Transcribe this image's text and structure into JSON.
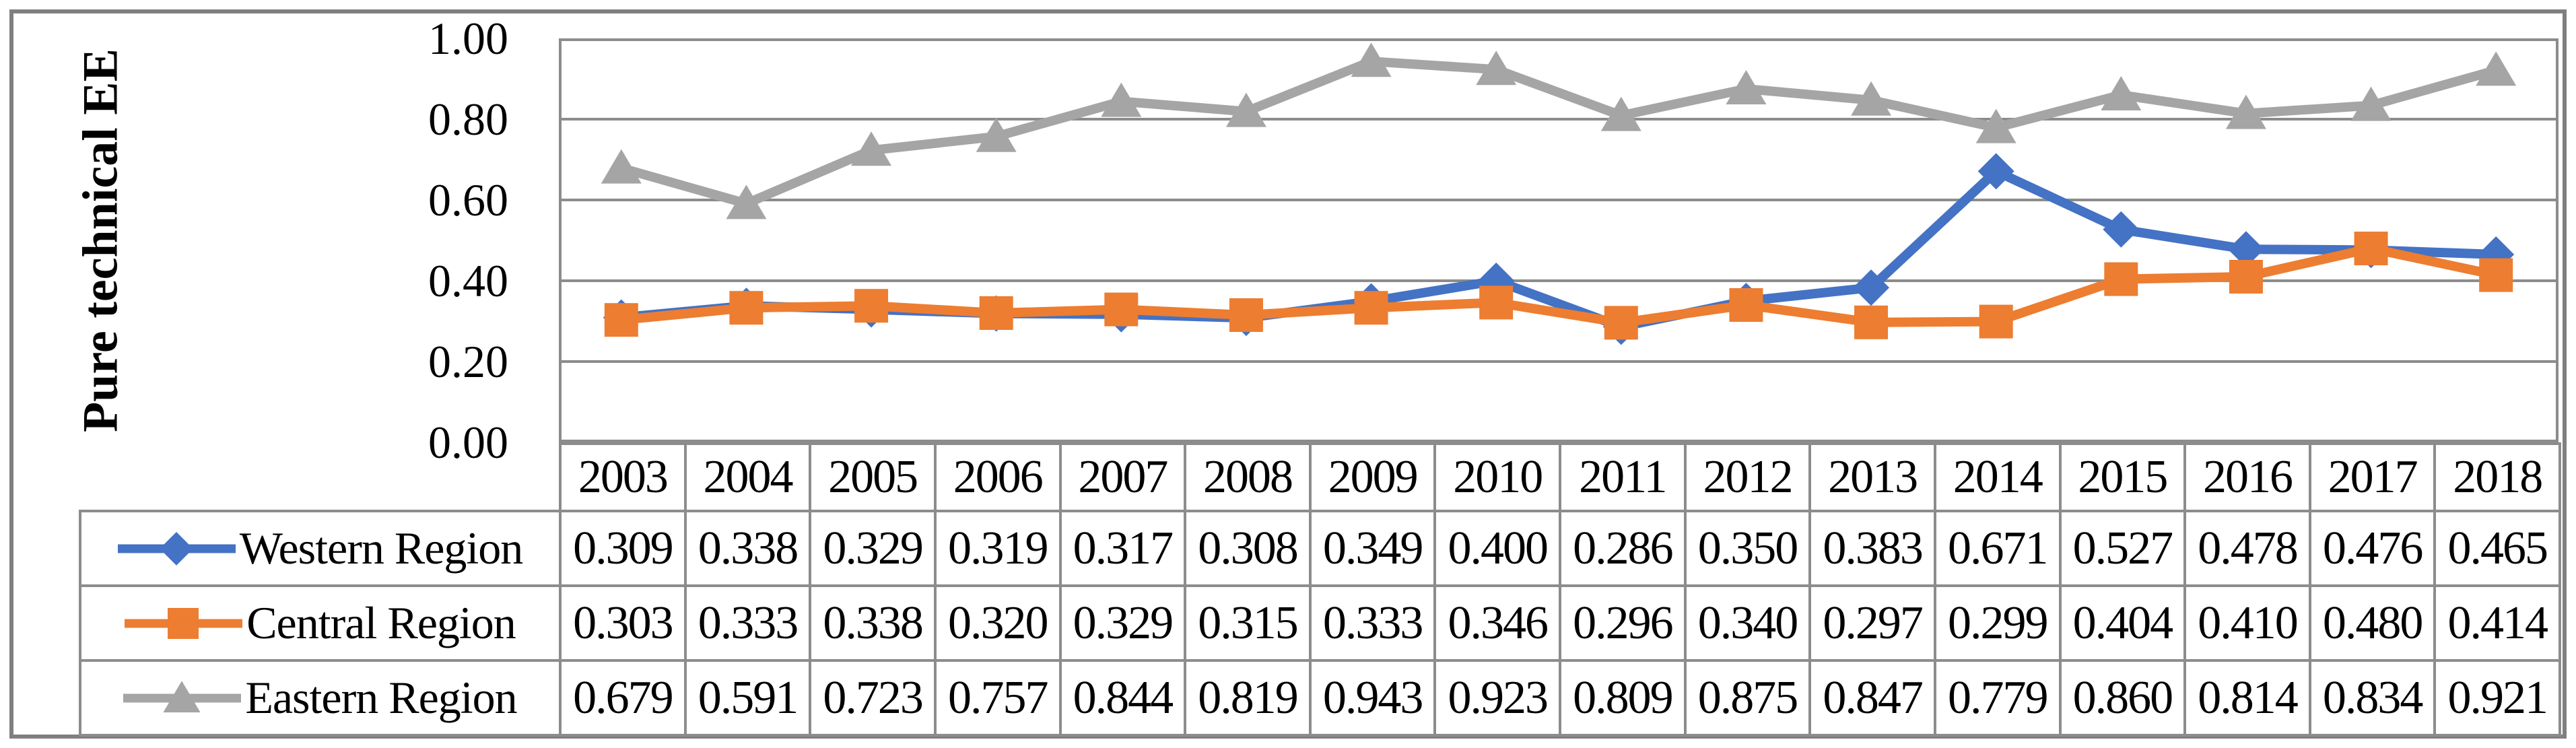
{
  "chart_data": {
    "type": "line",
    "title": "",
    "xlabel": "",
    "ylabel": "Pure technical EE",
    "ylim": [
      0,
      1
    ],
    "yticks": [
      "0.00",
      "0.20",
      "0.40",
      "0.60",
      "0.80",
      "1.00"
    ],
    "grid": true,
    "legend_position": "left-of-table-rows",
    "value_decimals": 3,
    "categories": [
      "2003",
      "2004",
      "2005",
      "2006",
      "2007",
      "2008",
      "2009",
      "2010",
      "2011",
      "2012",
      "2013",
      "2014",
      "2015",
      "2016",
      "2017",
      "2018"
    ],
    "series": [
      {
        "name": "Western Region",
        "marker": "diamond",
        "color": "#4472C4",
        "values": [
          0.309,
          0.338,
          0.329,
          0.319,
          0.317,
          0.308,
          0.349,
          0.4,
          0.286,
          0.35,
          0.383,
          0.671,
          0.527,
          0.478,
          0.476,
          0.465
        ]
      },
      {
        "name": "Central Region",
        "marker": "square",
        "color": "#ED7D31",
        "values": [
          0.303,
          0.333,
          0.338,
          0.32,
          0.329,
          0.315,
          0.333,
          0.346,
          0.296,
          0.34,
          0.297,
          0.299,
          0.404,
          0.41,
          0.48,
          0.414
        ]
      },
      {
        "name": "Eastern Region",
        "marker": "triangle",
        "color": "#A5A5A5",
        "values": [
          0.679,
          0.591,
          0.723,
          0.757,
          0.844,
          0.819,
          0.943,
          0.923,
          0.809,
          0.875,
          0.847,
          0.779,
          0.86,
          0.814,
          0.834,
          0.921
        ]
      }
    ]
  },
  "style": {
    "grid_color": "#8C8C8C",
    "outer_border_color": "#7F7F7F",
    "background": "#FFFFFF"
  }
}
